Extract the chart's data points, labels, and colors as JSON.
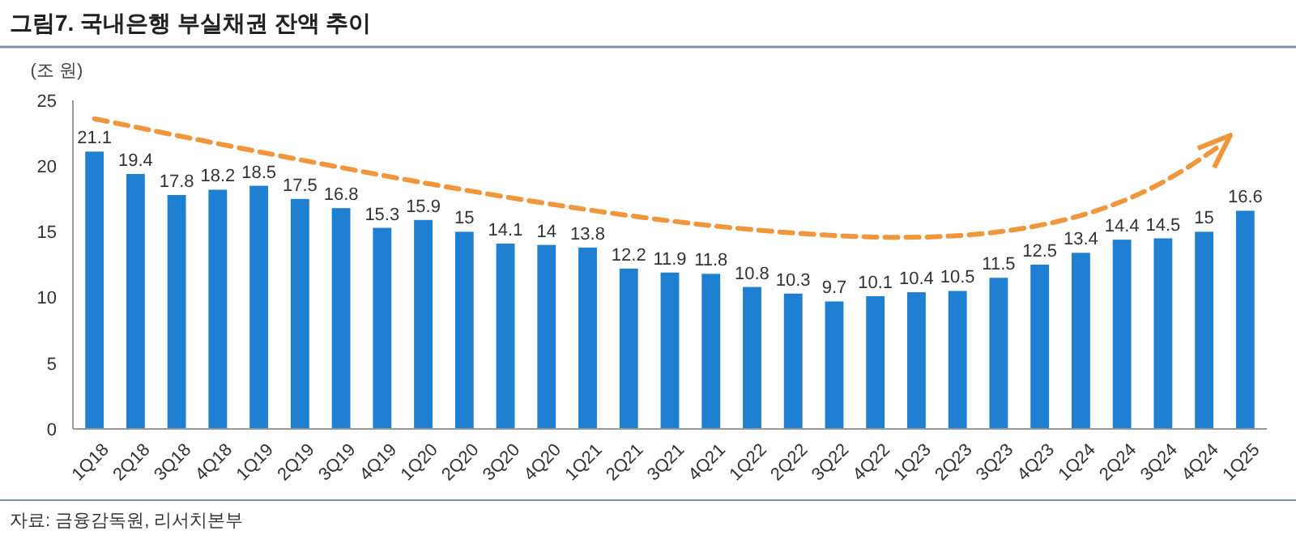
{
  "chart_data": {
    "type": "bar",
    "title": "그림7.  국내은행 부실채권 잔액 추이",
    "ylabel": "(조 원)",
    "categories": [
      "1Q18",
      "2Q18",
      "3Q18",
      "4Q18",
      "1Q19",
      "2Q19",
      "3Q19",
      "4Q19",
      "1Q20",
      "2Q20",
      "3Q20",
      "4Q20",
      "1Q21",
      "2Q21",
      "3Q21",
      "4Q21",
      "1Q22",
      "2Q22",
      "3Q22",
      "4Q22",
      "1Q23",
      "2Q23",
      "3Q23",
      "4Q23",
      "1Q24",
      "2Q24",
      "3Q24",
      "4Q24",
      "1Q25"
    ],
    "values": [
      21.1,
      19.4,
      17.8,
      18.2,
      18.5,
      17.5,
      16.8,
      15.3,
      15.9,
      15,
      14.1,
      14,
      13.8,
      12.2,
      11.9,
      11.8,
      10.8,
      10.3,
      9.7,
      10.1,
      10.4,
      10.5,
      11.5,
      12.5,
      13.4,
      14.4,
      14.5,
      15,
      16.6
    ],
    "color": "#1f7fd0",
    "ylim": [
      0,
      25
    ],
    "yticks": [
      0,
      5,
      10,
      15,
      20,
      25
    ],
    "data_labels": true,
    "grid": false,
    "annotations": [
      "자료: 금융감독원, 리서치본부"
    ]
  }
}
